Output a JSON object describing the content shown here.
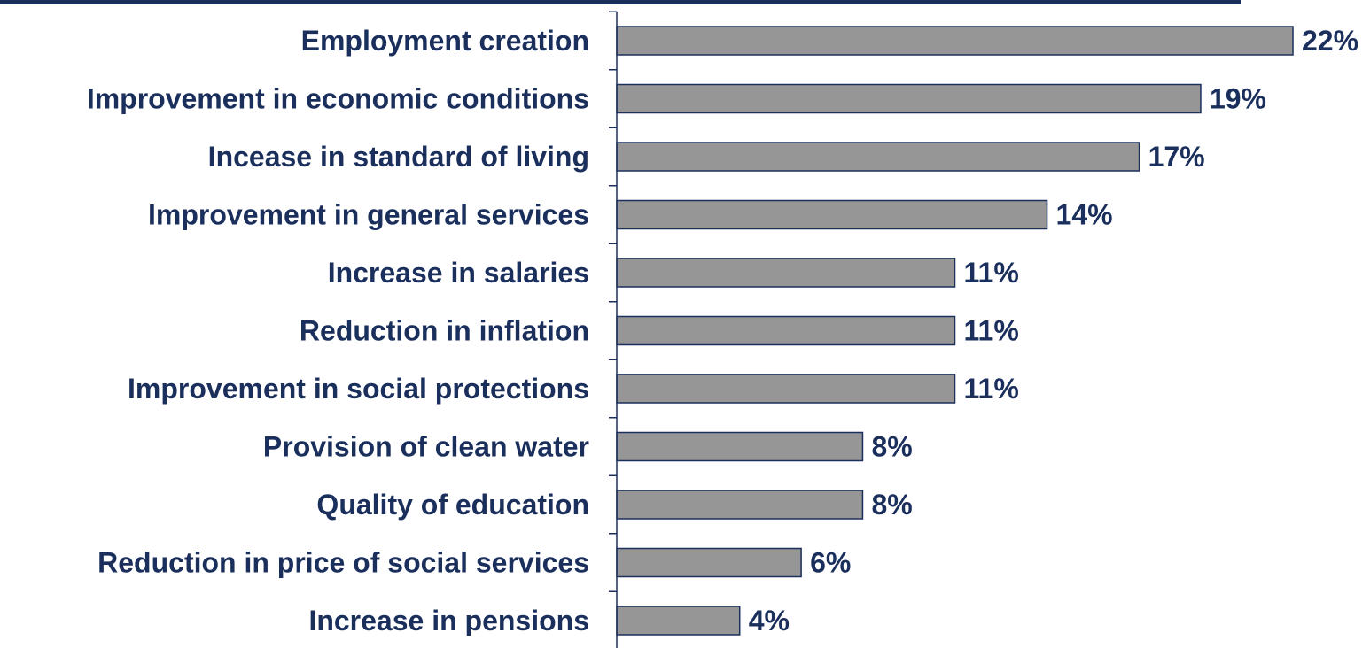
{
  "colors": {
    "text": "#1b2f5c",
    "bar_fill": "#969696",
    "bar_stroke": "#1b2f5c",
    "axis": "#1b2f5c",
    "top_rule": "#1b2f5c"
  },
  "chart_data": {
    "type": "bar",
    "orientation": "horizontal",
    "title": "",
    "xlabel": "",
    "ylabel": "",
    "xlim": [
      0,
      22
    ],
    "grid": false,
    "legend": "none",
    "categories": [
      "Employment creation",
      "Improvement in economic conditions",
      "Incease in standard of living",
      "Improvement in general services",
      "Increase in salaries",
      "Reduction in inflation",
      "Improvement in social protections",
      "Provision of clean water",
      "Quality of education",
      "Reduction in price of social services",
      "Increase in pensions"
    ],
    "values": [
      22,
      19,
      17,
      14,
      11,
      11,
      11,
      8,
      8,
      6,
      4
    ],
    "value_labels": [
      "22%",
      "19%",
      "17%",
      "14%",
      "11%",
      "11%",
      "11%",
      "8%",
      "8%",
      "6%",
      "4%"
    ]
  }
}
